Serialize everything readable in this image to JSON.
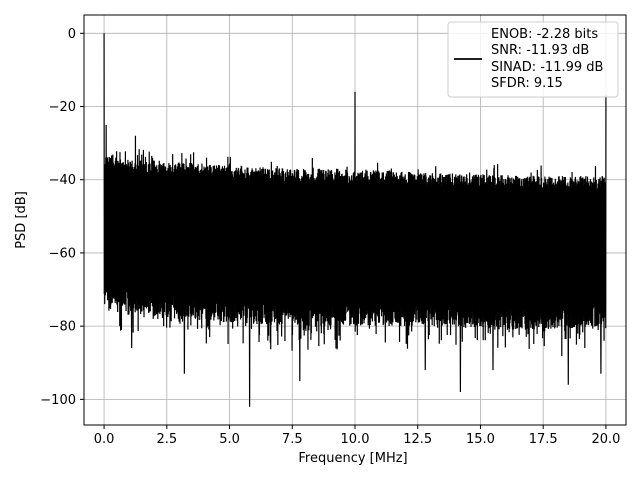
{
  "chart_data": {
    "type": "line",
    "xlabel": "Frequency [MHz]",
    "ylabel": "PSD [dB]",
    "xlim": [
      -0.8,
      20.8
    ],
    "ylim": [
      -107,
      5
    ],
    "xticks": [
      0.0,
      2.5,
      5.0,
      7.5,
      10.0,
      12.5,
      15.0,
      17.5,
      20.0
    ],
    "xtick_labels": [
      "0.0",
      "2.5",
      "5.0",
      "7.5",
      "10.0",
      "12.5",
      "15.0",
      "17.5",
      "20.0"
    ],
    "yticks": [
      0,
      -20,
      -40,
      -60,
      -80,
      -100
    ],
    "ytick_labels": [
      "0",
      "−20",
      "−40",
      "−60",
      "−80",
      "−100"
    ],
    "grid": true,
    "legend_position": "upper-right",
    "legend_lines": [
      "ENOB: -2.28 bits",
      "SNR: -11.93 dB",
      "SINAD: -11.99 dB",
      "SFDR: 9.15"
    ],
    "line_color": "#000000",
    "spectrum": {
      "x_range": [
        0.0,
        20.0
      ],
      "upper_envelope": [
        [
          0.0,
          -33
        ],
        [
          0.5,
          -34
        ],
        [
          2.5,
          -35
        ],
        [
          5.0,
          -36
        ],
        [
          7.5,
          -37
        ],
        [
          10.0,
          -37
        ],
        [
          12.5,
          -38
        ],
        [
          15.0,
          -38.5
        ],
        [
          17.5,
          -39
        ],
        [
          20.0,
          -39
        ]
      ],
      "lower_envelope": [
        [
          0.0,
          -75
        ],
        [
          2.5,
          -78
        ],
        [
          5.0,
          -79
        ],
        [
          7.5,
          -80
        ],
        [
          10.0,
          -80
        ],
        [
          12.5,
          -80
        ],
        [
          15.0,
          -81
        ],
        [
          17.5,
          -81
        ],
        [
          20.0,
          -80
        ]
      ],
      "peaks": [
        {
          "x": 0.0,
          "y": 0
        },
        {
          "x": 0.08,
          "y": -25
        },
        {
          "x": 1.25,
          "y": -28
        },
        {
          "x": 10.0,
          "y": -16
        },
        {
          "x": 20.0,
          "y": -17
        }
      ],
      "dips": [
        {
          "x": 1.1,
          "y": -86
        },
        {
          "x": 3.2,
          "y": -93
        },
        {
          "x": 5.8,
          "y": -102
        },
        {
          "x": 7.8,
          "y": -95
        },
        {
          "x": 12.8,
          "y": -92
        },
        {
          "x": 14.2,
          "y": -98
        },
        {
          "x": 15.5,
          "y": -92
        },
        {
          "x": 18.5,
          "y": -96
        },
        {
          "x": 19.8,
          "y": -93
        }
      ]
    }
  }
}
